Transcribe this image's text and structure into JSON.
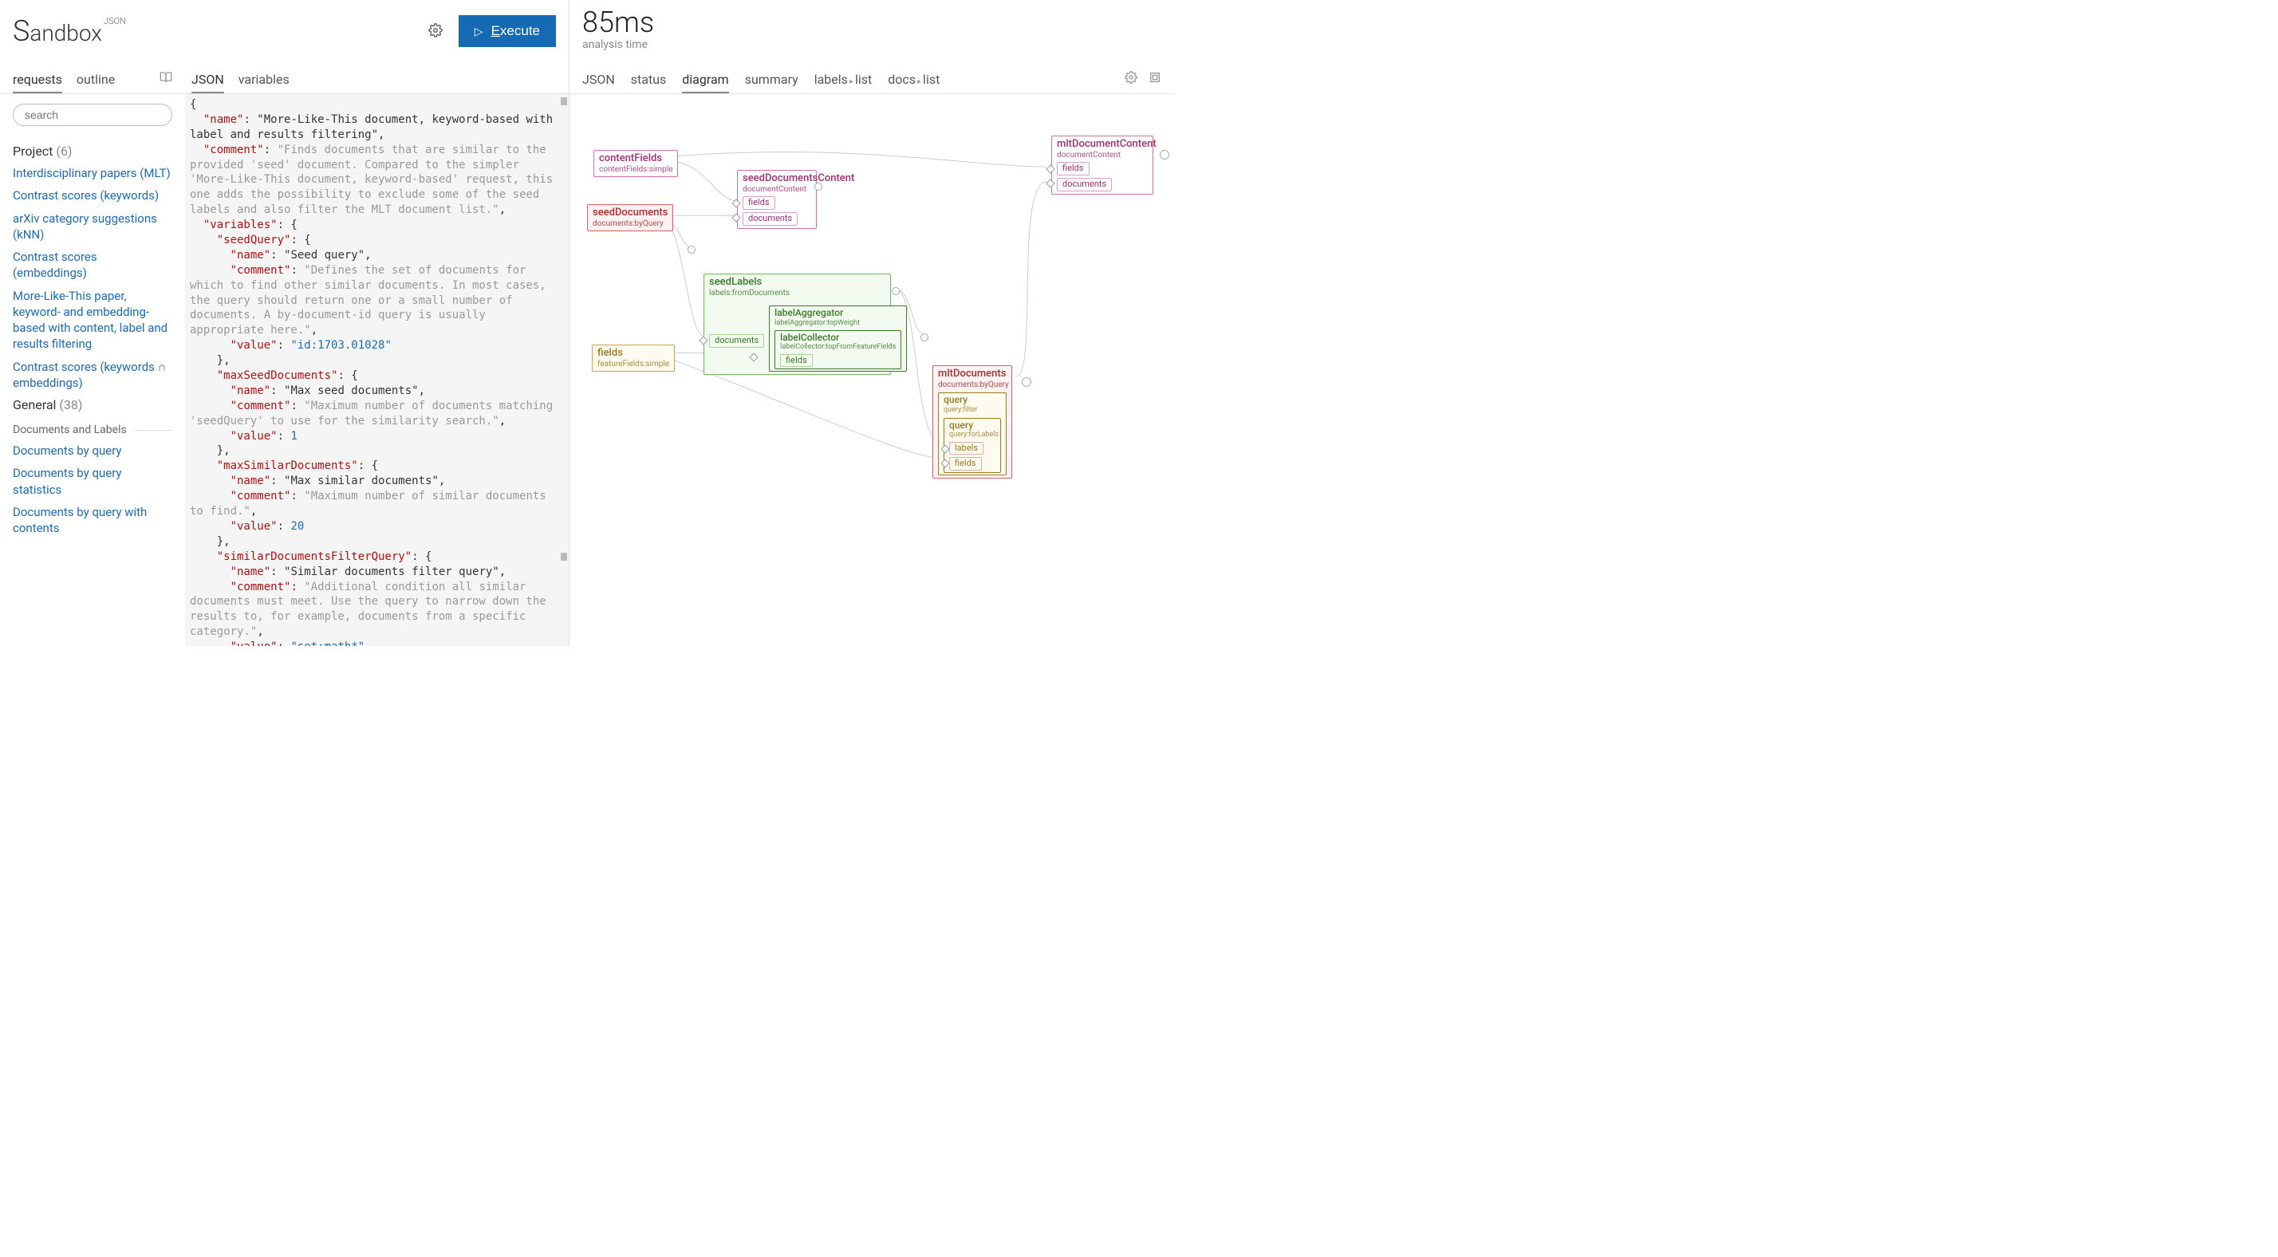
{
  "logo": {
    "main": "andbox",
    "prefix": "S",
    "sup": "JSON"
  },
  "execute_label": "Execute",
  "left_tabs": {
    "requests": "requests",
    "outline": "outline"
  },
  "mid_tabs": {
    "json": "JSON",
    "variables": "variables"
  },
  "search_placeholder": "search",
  "sidebar": {
    "project_head": "Project ",
    "project_count": "(6)",
    "items": [
      "Interdisciplinary papers (MLT)",
      "Contrast scores (keywords)",
      "arXiv category suggestions (kNN)",
      "Contrast scores (embeddings)",
      "More-Like-This paper, keyword- and embedding-based with content, label and results filtering",
      "Contrast scores (keywords ∩ embeddings)"
    ],
    "general_head": "General ",
    "general_count": "(38)",
    "sub": "Documents and Labels",
    "gen_items": [
      "Documents by query",
      "Documents by query statistics",
      "Documents by query with contents"
    ]
  },
  "json_code": {
    "name": "More-Like-This document, keyword-based with label and results filtering",
    "comment": "Finds documents that are similar to the provided 'seed' document. Compared to the simpler 'More-Like-This document, keyword-based' request, this one adds the possibility to exclude some of the seed labels and also filter the MLT document list.",
    "seedQuery_name": "Seed query",
    "seedQuery_comment": "Defines the set of documents for which to find other similar documents. In most cases, the query should return one or a small number of documents. A by-document-id query is usually appropriate here.",
    "seedQuery_value": "id:1703.01028",
    "maxSeed_name": "Max seed documents",
    "maxSeed_comment": "Maximum number of documents matching 'seedQuery' to use for the similarity search.",
    "maxSeed_value": "1",
    "maxSim_name": "Max similar documents",
    "maxSim_comment": "Maximum number of similar documents to find.",
    "maxSim_value": "20",
    "simFilter_name": "Similar documents filter query",
    "simFilter_comment": "Additional condition all similar documents must meet. Use the query to narrow down the results to, for example, documents from a specific category.",
    "simFilter_value": "set:math*"
  },
  "right": {
    "time": "85ms",
    "sub": "analysis time",
    "tabs": {
      "json": "JSON",
      "status": "status",
      "diagram": "diagram",
      "summary": "summary",
      "labels": "labels",
      "labels_r": "list",
      "docs": "docs",
      "docs_r": "list"
    }
  },
  "diagram": {
    "nodes": {
      "contentFields": {
        "t": "contentFields",
        "s": "contentFields:simple"
      },
      "seedDocuments": {
        "t": "seedDocuments",
        "s": "documents:byQuery"
      },
      "seedDocumentsContent": {
        "t": "seedDocumentsContent",
        "s": "documentContent",
        "r1": "fields",
        "r2": "documents"
      },
      "mltDocumentContent": {
        "t": "mltDocumentContent",
        "s": "documentContent",
        "r1": "fields",
        "r2": "documents"
      },
      "fields": {
        "t": "fields",
        "s": "featureFields:simple"
      },
      "seedLabels": {
        "t": "seedLabels",
        "s": "labels:fromDocuments",
        "rdoc": "documents",
        "inner1_t": "labelAggregator",
        "inner1_s": "labelAggregator:topWeight",
        "inner2_t": "labelCollector",
        "inner2_s": "labelCollector:topFromFeatureFields",
        "inner2_r": "fields"
      },
      "mltDocuments": {
        "t": "mltDocuments",
        "s": "documents:byQuery",
        "q1_t": "query",
        "q1_s": "query:filter",
        "q2_t": "query",
        "q2_s": "query:forLabels",
        "q2_r1": "labels",
        "q2_r2": "fields"
      }
    },
    "edges_color": "#cccccc"
  }
}
